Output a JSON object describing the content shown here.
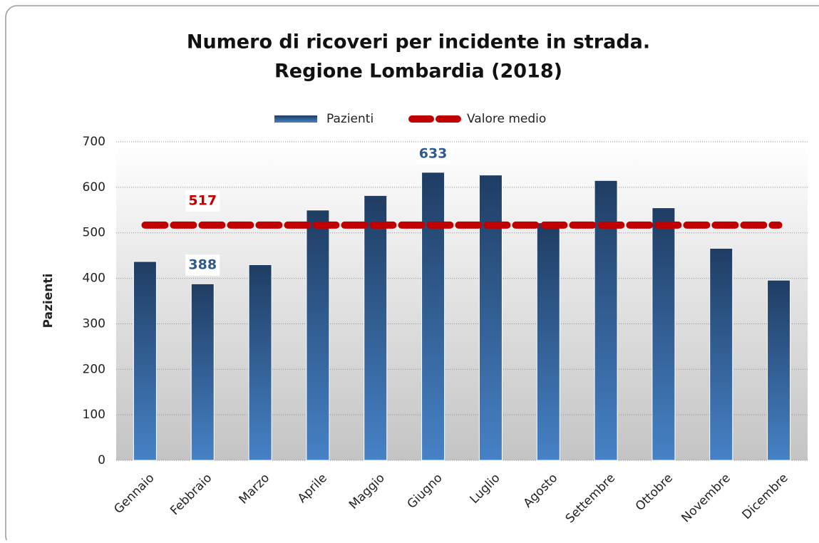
{
  "chart_data": {
    "type": "bar",
    "title": [
      "Numero di ricoveri per incidente in strada.",
      "Regione Lombardia (2018)"
    ],
    "y_label": "Pazienti",
    "categories": [
      "Gennaio",
      "Febbraio",
      "Marzo",
      "Aprile",
      "Maggio",
      "Giugno",
      "Luglio",
      "Agosto",
      "Settembre",
      "Ottobre",
      "Novembre",
      "Dicembre"
    ],
    "series": [
      {
        "name": "Pazienti",
        "type": "bar",
        "color": "#2e5a8e",
        "values": [
          437,
          388,
          430,
          550,
          582,
          633,
          627,
          522,
          615,
          555,
          466,
          396
        ],
        "value_labels": [
          null,
          "388",
          null,
          null,
          null,
          "633",
          null,
          null,
          null,
          null,
          null,
          null
        ]
      },
      {
        "name": "Valore medio",
        "type": "line",
        "color": "#c00000",
        "values": [
          517,
          517,
          517,
          517,
          517,
          517,
          517,
          517,
          517,
          517,
          517,
          517
        ],
        "value_labels": [
          null,
          "517",
          null,
          null,
          null,
          null,
          null,
          null,
          null,
          null,
          null,
          null
        ]
      }
    ],
    "ylim": [
      0,
      700
    ],
    "yticks": [
      0,
      100,
      200,
      300,
      400,
      500,
      600,
      700
    ],
    "grid": true,
    "legend": "top"
  }
}
